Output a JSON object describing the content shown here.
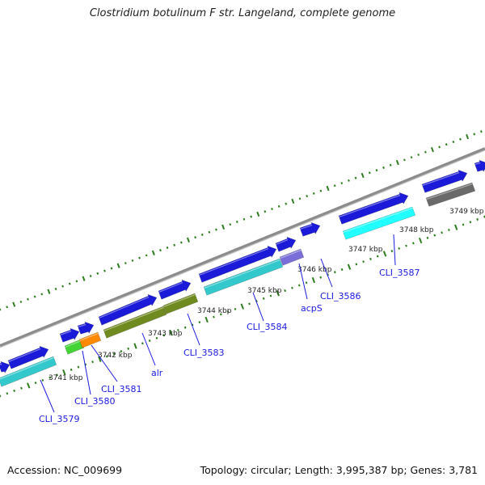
{
  "title": "Clostridium botulinum F str. Langeland, complete genome",
  "footer": {
    "accession": "Accession: NC_009699",
    "topology": "Topology: circular; Length: 3,995,387 bp; Genes: 3,781"
  },
  "colors": {
    "backbone": "#8c8c8c",
    "tick": "#2e7d1e",
    "forward_gene": "#1a1ad8",
    "cyan": "#33c9cc",
    "light_cyan": "#22ffff",
    "olive": "#6f8a1f",
    "green": "#44d436",
    "orange": "#ff8a00",
    "violet": "#7a6fd9",
    "gray": "#6a6a6a",
    "label": "#1a1adf"
  },
  "scale_labels": [
    "3741 kbp",
    "3742 kbp",
    "3743 kbp",
    "3744 kbp",
    "3745 kbp",
    "3746 kbp",
    "3747 kbp",
    "3748 kbp",
    "3749 kbp"
  ],
  "gene_labels": [
    "CLI_3579",
    "CLI_3580",
    "CLI_3581",
    "alr",
    "CLI_3583",
    "CLI_3584",
    "acpS",
    "CLI_3586",
    "CLI_3587"
  ]
}
